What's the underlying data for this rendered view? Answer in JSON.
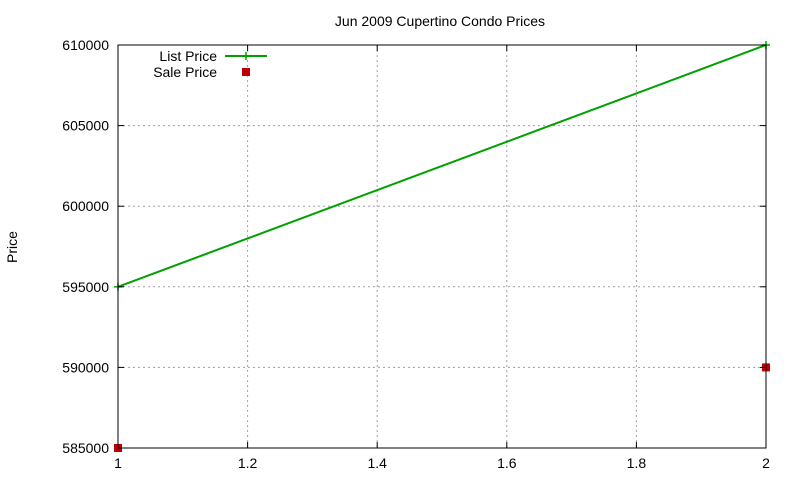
{
  "chart_data": {
    "type": "line",
    "title": "Jun 2009 Cupertino Condo Prices",
    "xlabel": "",
    "ylabel": "Price",
    "xlim": [
      1,
      2
    ],
    "ylim": [
      585000,
      610000
    ],
    "x_ticks": [
      1,
      1.2,
      1.4,
      1.6,
      1.8,
      2
    ],
    "x_tick_labels": [
      "1",
      "1.2",
      "1.4",
      "1.6",
      "1.8",
      "2"
    ],
    "y_ticks": [
      585000,
      590000,
      595000,
      600000,
      605000,
      610000
    ],
    "y_tick_labels": [
      "585000",
      "590000",
      "595000",
      "600000",
      "605000",
      "610000"
    ],
    "grid": true,
    "legend_position": "top-left",
    "series": [
      {
        "name": "List Price",
        "style": "linespoints",
        "marker": "plus",
        "color": "#00a000",
        "x": [
          1,
          2
        ],
        "values": [
          595000,
          610000
        ]
      },
      {
        "name": "Sale Price",
        "style": "points",
        "marker": "square",
        "color": "#c00000",
        "x": [
          1,
          2
        ],
        "values": [
          585000,
          590000
        ]
      }
    ]
  }
}
